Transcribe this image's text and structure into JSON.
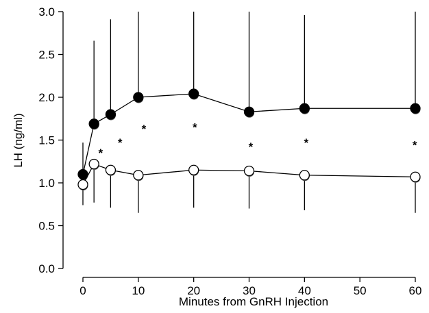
{
  "chart_data": {
    "type": "line",
    "xlabel": "Minutes from GnRH Injection",
    "ylabel": "LH (ng/ml)",
    "x": [
      0,
      2,
      5,
      10,
      20,
      30,
      40,
      60
    ],
    "series": [
      {
        "marker": "filled",
        "color": "#000000",
        "error_direction": "up",
        "values": [
          1.1,
          1.69,
          1.8,
          2.0,
          2.04,
          1.83,
          1.87,
          1.87
        ],
        "errors": [
          0.37,
          0.97,
          1.11,
          1.2,
          1.2,
          1.35,
          1.09,
          1.4
        ]
      },
      {
        "marker": "open",
        "color": "#000000",
        "error_direction": "down",
        "values": [
          0.98,
          1.22,
          1.15,
          1.09,
          1.15,
          1.14,
          1.09,
          1.07
        ],
        "errors": [
          0.24,
          0.45,
          0.44,
          0.44,
          0.44,
          0.44,
          0.41,
          0.42
        ]
      }
    ],
    "annotations": [
      {
        "text": "*",
        "x": 3.2,
        "y": 1.37
      },
      {
        "text": "*",
        "x": 6.7,
        "y": 1.49
      },
      {
        "text": "*",
        "x": 11,
        "y": 1.65
      },
      {
        "text": "*",
        "x": 20.2,
        "y": 1.67
      },
      {
        "text": "*",
        "x": 30.3,
        "y": 1.44
      },
      {
        "text": "*",
        "x": 40.3,
        "y": 1.49
      },
      {
        "text": "*",
        "x": 59.9,
        "y": 1.46
      }
    ],
    "xlim": [
      0,
      60
    ],
    "xticks": [
      0,
      10,
      20,
      30,
      40,
      50,
      60
    ],
    "ylim": [
      0,
      3
    ],
    "yticks": [
      {
        "value": 0,
        "label": "0.0"
      },
      0.5,
      {
        "value": 1,
        "label": "1.0"
      },
      1.5,
      {
        "value": 2,
        "label": "2.0"
      },
      2.5,
      {
        "value": 3,
        "label": "3.0"
      }
    ]
  }
}
